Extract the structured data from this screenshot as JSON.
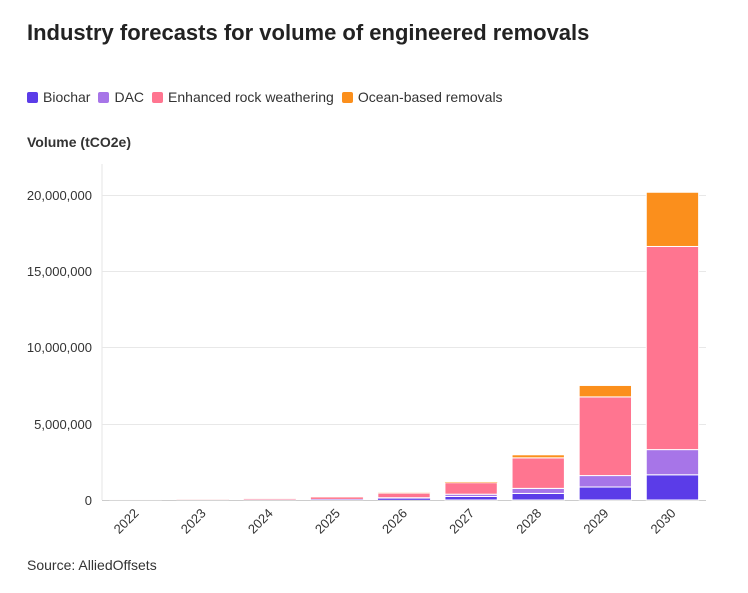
{
  "chart_data": {
    "type": "bar",
    "stacked": true,
    "title": "Industry forecasts for volume of engineered removals",
    "ylabel": "Volume (tCO2e)",
    "xlabel": "",
    "source": "Source: AlliedOffsets",
    "categories": [
      "2022",
      "2023",
      "2024",
      "2025",
      "2026",
      "2027",
      "2028",
      "2029",
      "2030"
    ],
    "ylim": [
      0,
      22000000
    ],
    "yticks": [
      0,
      5000000,
      10000000,
      15000000,
      20000000
    ],
    "ytick_labels": [
      "0",
      "5,000,000",
      "10,000,000",
      "15,000,000",
      "20,000,000"
    ],
    "grid": true,
    "legend_position": "top-left",
    "series": [
      {
        "name": "Biochar",
        "color": "#5b3ce8",
        "values": [
          5000,
          10000,
          20000,
          40000,
          100000,
          230000,
          430000,
          850000,
          1650000
        ]
      },
      {
        "name": "DAC",
        "color": "#a775e8",
        "values": [
          2000,
          5000,
          10000,
          20000,
          50000,
          150000,
          330000,
          750000,
          1650000
        ]
      },
      {
        "name": "Enhanced rock weathering",
        "color": "#ff7590",
        "values": [
          10000,
          20000,
          50000,
          120000,
          300000,
          750000,
          2000000,
          5150000,
          13300000
        ]
      },
      {
        "name": "Ocean-based removals",
        "color": "#fb8f1c",
        "values": [
          1000,
          2000,
          5000,
          10000,
          30000,
          50000,
          200000,
          750000,
          3550000
        ]
      }
    ]
  }
}
